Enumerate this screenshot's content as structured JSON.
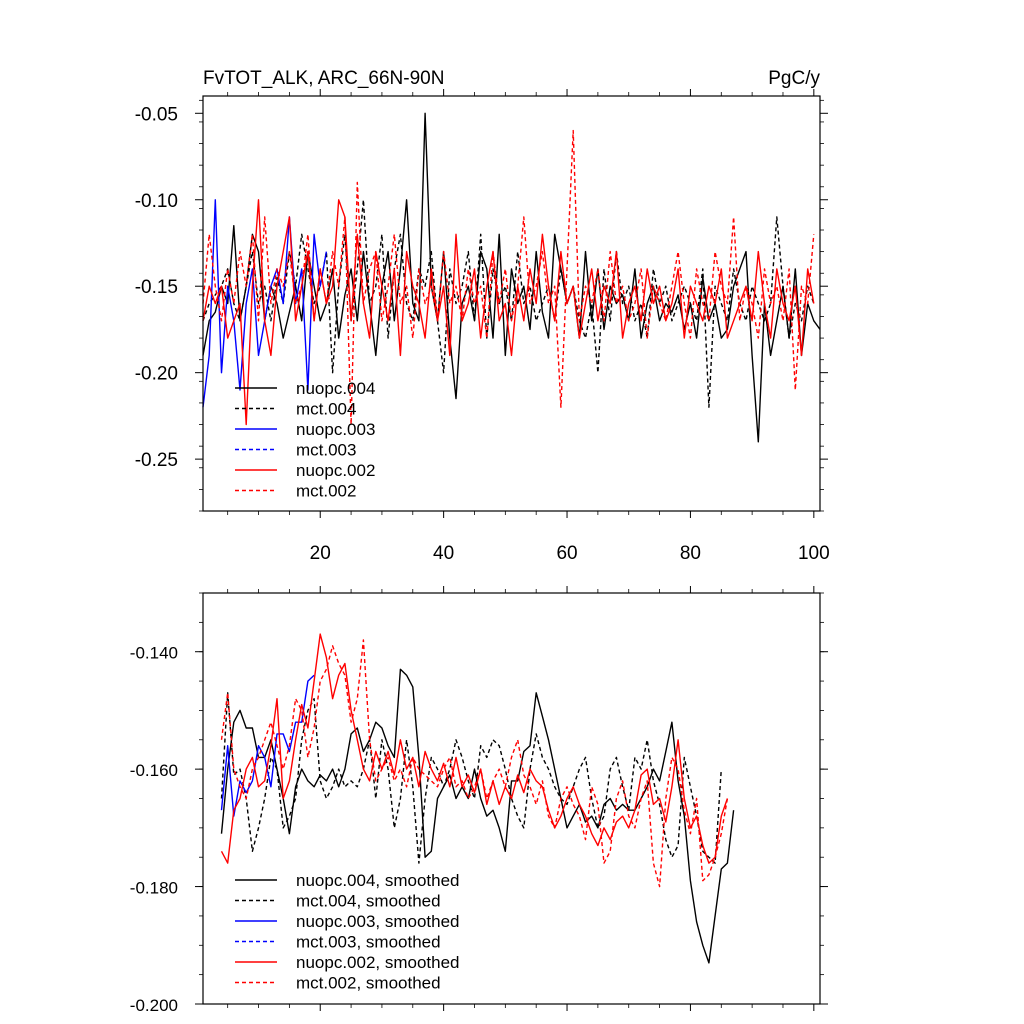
{
  "chart_data": [
    {
      "type": "line",
      "title_left": "FvTOT_ALK, ARC_66N-90N",
      "title_right": "PgC/y",
      "xlim": [
        1,
        101
      ],
      "ylim": [
        -0.28,
        -0.04
      ],
      "x_ticks": [
        20,
        40,
        60,
        80,
        100
      ],
      "x_tick_labels": [
        "20",
        "40",
        "60",
        "80",
        "100"
      ],
      "y_ticks": [
        -0.05,
        -0.1,
        -0.15,
        -0.2,
        -0.25
      ],
      "y_tick_labels": [
        "-0.05",
        "-0.10",
        "-0.15",
        "-0.20",
        "-0.25"
      ],
      "legend_position": "bottom-left",
      "series": [
        {
          "name": "nuopc.004",
          "color": "#000000",
          "dash": "solid",
          "x_start": 1,
          "values": [
            -0.19,
            -0.17,
            -0.165,
            -0.15,
            -0.16,
            -0.115,
            -0.17,
            -0.15,
            -0.12,
            -0.13,
            -0.17,
            -0.15,
            -0.16,
            -0.18,
            -0.165,
            -0.15,
            -0.17,
            -0.13,
            -0.15,
            -0.17,
            -0.16,
            -0.14,
            -0.18,
            -0.155,
            -0.14,
            -0.17,
            -0.13,
            -0.16,
            -0.19,
            -0.15,
            -0.13,
            -0.17,
            -0.14,
            -0.1,
            -0.16,
            -0.17,
            -0.05,
            -0.15,
            -0.17,
            -0.13,
            -0.18,
            -0.215,
            -0.16,
            -0.15,
            -0.17,
            -0.13,
            -0.14,
            -0.18,
            -0.12,
            -0.19,
            -0.14,
            -0.16,
            -0.15,
            -0.175,
            -0.13,
            -0.165,
            -0.18,
            -0.12,
            -0.14,
            -0.16,
            -0.15,
            -0.18,
            -0.13,
            -0.17,
            -0.14,
            -0.175,
            -0.15,
            -0.16,
            -0.155,
            -0.17,
            -0.14,
            -0.18,
            -0.16,
            -0.15,
            -0.17,
            -0.16,
            -0.165,
            -0.155,
            -0.175,
            -0.16,
            -0.18,
            -0.145,
            -0.17,
            -0.16,
            -0.18,
            -0.175,
            -0.15,
            -0.14,
            -0.13,
            -0.19,
            -0.24,
            -0.16,
            -0.19,
            -0.17,
            -0.15,
            -0.18,
            -0.14,
            -0.19,
            -0.16,
            -0.17,
            -0.175
          ]
        },
        {
          "name": "mct.004",
          "color": "#000000",
          "dash": "dashed",
          "x_start": 1,
          "values": [
            -0.17,
            -0.16,
            -0.155,
            -0.15,
            -0.14,
            -0.16,
            -0.17,
            -0.15,
            -0.13,
            -0.16,
            -0.15,
            -0.17,
            -0.145,
            -0.16,
            -0.13,
            -0.15,
            -0.12,
            -0.14,
            -0.16,
            -0.15,
            -0.13,
            -0.2,
            -0.15,
            -0.12,
            -0.17,
            -0.14,
            -0.1,
            -0.16,
            -0.15,
            -0.12,
            -0.18,
            -0.14,
            -0.12,
            -0.16,
            -0.17,
            -0.14,
            -0.15,
            -0.13,
            -0.17,
            -0.2,
            -0.14,
            -0.16,
            -0.15,
            -0.13,
            -0.17,
            -0.12,
            -0.18,
            -0.14,
            -0.16,
            -0.15,
            -0.17,
            -0.13,
            -0.16,
            -0.15,
            -0.17,
            -0.16,
            -0.15,
            -0.17,
            -0.14,
            -0.16,
            -0.15,
            -0.17,
            -0.18,
            -0.16,
            -0.2,
            -0.14,
            -0.17,
            -0.13,
            -0.16,
            -0.15,
            -0.17,
            -0.16,
            -0.18,
            -0.14,
            -0.16,
            -0.15,
            -0.17,
            -0.16,
            -0.15,
            -0.16,
            -0.17,
            -0.14,
            -0.22,
            -0.15,
            -0.16,
            -0.17,
            -0.14,
            -0.16,
            -0.17,
            -0.15,
            -0.16,
            -0.17,
            -0.16,
            -0.11,
            -0.15,
            -0.18,
            -0.16,
            -0.17,
            -0.15,
            -0.16
          ]
        },
        {
          "name": "nuopc.003",
          "color": "#0000ff",
          "dash": "solid",
          "x_start": 1,
          "values": [
            -0.22,
            -0.19,
            -0.1,
            -0.2,
            -0.15,
            -0.17,
            -0.21,
            -0.16,
            -0.14,
            -0.19,
            -0.17,
            -0.15,
            -0.14,
            -0.16,
            -0.11,
            -0.16,
            -0.14,
            -0.21,
            -0.12,
            -0.15,
            -0.13
          ]
        },
        {
          "name": "nuopc.002",
          "color": "#ff0000",
          "dash": "solid",
          "x_start": 1,
          "values": [
            -0.17,
            -0.15,
            -0.16,
            -0.15,
            -0.18,
            -0.17,
            -0.16,
            -0.23,
            -0.15,
            -0.1,
            -0.17,
            -0.19,
            -0.15,
            -0.13,
            -0.11,
            -0.17,
            -0.15,
            -0.13,
            -0.17,
            -0.14,
            -0.16,
            -0.15,
            -0.1,
            -0.11,
            -0.17,
            -0.12,
            -0.16,
            -0.18,
            -0.13,
            -0.15,
            -0.17,
            -0.14,
            -0.19,
            -0.13,
            -0.15,
            -0.16,
            -0.18,
            -0.14,
            -0.17,
            -0.15,
            -0.19,
            -0.12,
            -0.17,
            -0.16,
            -0.14,
            -0.18,
            -0.15,
            -0.13,
            -0.17,
            -0.16,
            -0.19,
            -0.15,
            -0.17,
            -0.14,
            -0.16,
            -0.12,
            -0.15,
            -0.17,
            -0.13,
            -0.16,
            -0.15,
            -0.18,
            -0.16,
            -0.14,
            -0.17,
            -0.15,
            -0.16,
            -0.13,
            -0.18,
            -0.16,
            -0.15,
            -0.17,
            -0.14,
            -0.16,
            -0.15,
            -0.17,
            -0.16,
            -0.14,
            -0.18,
            -0.15,
            -0.16,
            -0.17,
            -0.15,
            -0.16,
            -0.14,
            -0.18,
            -0.17,
            -0.16,
            -0.15,
            -0.17,
            -0.13,
            -0.16,
            -0.18,
            -0.14,
            -0.16,
            -0.17,
            -0.15,
            -0.19,
            -0.14,
            -0.16
          ]
        },
        {
          "name": "mct.002",
          "color": "#ff0000",
          "dash": "dashed",
          "x_start": 1,
          "values": [
            -0.16,
            -0.12,
            -0.15,
            -0.17,
            -0.14,
            -0.16,
            -0.13,
            -0.15,
            -0.12,
            -0.17,
            -0.11,
            -0.16,
            -0.14,
            -0.15,
            -0.13,
            -0.16,
            -0.15,
            -0.12,
            -0.17,
            -0.14,
            -0.16,
            -0.13,
            -0.15,
            -0.11,
            -0.23,
            -0.09,
            -0.16,
            -0.14,
            -0.13,
            -0.17,
            -0.15,
            -0.12,
            -0.16,
            -0.15,
            -0.18,
            -0.14,
            -0.16,
            -0.15,
            -0.17,
            -0.13,
            -0.16,
            -0.15,
            -0.17,
            -0.14,
            -0.16,
            -0.15,
            -0.18,
            -0.13,
            -0.16,
            -0.14,
            -0.17,
            -0.15,
            -0.11,
            -0.16,
            -0.15,
            -0.13,
            -0.16,
            -0.15,
            -0.22,
            -0.14,
            -0.06,
            -0.17,
            -0.15,
            -0.16,
            -0.14,
            -0.17,
            -0.13,
            -0.16,
            -0.15,
            -0.17,
            -0.16,
            -0.14,
            -0.18,
            -0.15,
            -0.16,
            -0.17,
            -0.15,
            -0.13,
            -0.16,
            -0.18,
            -0.14,
            -0.16,
            -0.17,
            -0.13,
            -0.15,
            -0.16,
            -0.11,
            -0.17,
            -0.15,
            -0.16,
            -0.18,
            -0.14,
            -0.16,
            -0.15,
            -0.17,
            -0.14,
            -0.21,
            -0.15,
            -0.16,
            -0.12
          ]
        }
      ],
      "legend": [
        {
          "label": "nuopc.004",
          "color": "#000000",
          "dash": "solid"
        },
        {
          "label": "mct.004",
          "color": "#000000",
          "dash": "dashed"
        },
        {
          "label": "nuopc.003",
          "color": "#0000ff",
          "dash": "solid"
        },
        {
          "label": "mct.003",
          "color": "#0000ff",
          "dash": "dashed"
        },
        {
          "label": "nuopc.002",
          "color": "#ff0000",
          "dash": "solid"
        },
        {
          "label": "mct.002",
          "color": "#ff0000",
          "dash": "dashed"
        }
      ]
    },
    {
      "type": "line",
      "xlim": [
        1,
        101
      ],
      "ylim": [
        -0.2,
        -0.13
      ],
      "x_ticks": [],
      "x_tick_labels": [],
      "y_ticks": [
        -0.14,
        -0.16,
        -0.18,
        -0.2
      ],
      "y_tick_labels": [
        "-0.140",
        "-0.160",
        "-0.180",
        "-0.200"
      ],
      "legend_position": "bottom-left",
      "series": [
        {
          "name": "nuopc.004, smoothed",
          "color": "#000000",
          "dash": "solid",
          "x_start": 4,
          "values": [
            -0.171,
            -0.16,
            -0.152,
            -0.15,
            -0.153,
            -0.153,
            -0.158,
            -0.158,
            -0.155,
            -0.16,
            -0.165,
            -0.171,
            -0.163,
            -0.16,
            -0.162,
            -0.163,
            -0.161,
            -0.162,
            -0.16,
            -0.163,
            -0.16,
            -0.154,
            -0.153,
            -0.157,
            -0.155,
            -0.152,
            -0.153,
            -0.156,
            -0.158,
            -0.143,
            -0.144,
            -0.146,
            -0.158,
            -0.175,
            -0.174,
            -0.165,
            -0.163,
            -0.161,
            -0.165,
            -0.163,
            -0.165,
            -0.16,
            -0.165,
            -0.168,
            -0.167,
            -0.17,
            -0.174,
            -0.162,
            -0.162,
            -0.157,
            -0.156,
            -0.147,
            -0.151,
            -0.155,
            -0.16,
            -0.165,
            -0.17,
            -0.168,
            -0.166,
            -0.169,
            -0.168,
            -0.17,
            -0.166,
            -0.165,
            -0.167,
            -0.166,
            -0.167,
            -0.167,
            -0.165,
            -0.163,
            -0.16,
            -0.162,
            -0.157,
            -0.152,
            -0.162,
            -0.168,
            -0.179,
            -0.186,
            -0.19,
            -0.193,
            -0.185,
            -0.177,
            -0.176,
            -0.167
          ]
        },
        {
          "name": "mct.004, smoothed",
          "color": "#000000",
          "dash": "dashed",
          "x_start": 4,
          "values": [
            -0.165,
            -0.147,
            -0.161,
            -0.16,
            -0.165,
            -0.174,
            -0.17,
            -0.165,
            -0.158,
            -0.16,
            -0.17,
            -0.168,
            -0.165,
            -0.155,
            -0.15,
            -0.148,
            -0.162,
            -0.165,
            -0.163,
            -0.16,
            -0.163,
            -0.162,
            -0.163,
            -0.16,
            -0.155,
            -0.165,
            -0.155,
            -0.16,
            -0.17,
            -0.165,
            -0.155,
            -0.163,
            -0.176,
            -0.165,
            -0.158,
            -0.16,
            -0.163,
            -0.16,
            -0.155,
            -0.158,
            -0.162,
            -0.165,
            -0.156,
            -0.158,
            -0.155,
            -0.156,
            -0.16,
            -0.165,
            -0.168,
            -0.17,
            -0.16,
            -0.154,
            -0.158,
            -0.16,
            -0.163,
            -0.165,
            -0.166,
            -0.163,
            -0.16,
            -0.158,
            -0.165,
            -0.17,
            -0.168,
            -0.16,
            -0.158,
            -0.163,
            -0.167,
            -0.158,
            -0.16,
            -0.155,
            -0.162,
            -0.166,
            -0.172,
            -0.175,
            -0.173,
            -0.158,
            -0.163,
            -0.168,
            -0.174,
            -0.175,
            -0.176,
            -0.16
          ]
        },
        {
          "name": "nuopc.003, smoothed",
          "color": "#0000ff",
          "dash": "solid",
          "x_start": 4,
          "values": [
            -0.167,
            -0.156,
            -0.168,
            -0.162,
            -0.164,
            -0.162,
            -0.156,
            -0.158,
            -0.163,
            -0.154,
            -0.154,
            -0.157,
            -0.152,
            -0.152,
            -0.145,
            -0.144
          ]
        },
        {
          "name": "nuopc.002, smoothed",
          "color": "#ff0000",
          "dash": "solid",
          "x_start": 4,
          "values": [
            -0.174,
            -0.176,
            -0.167,
            -0.165,
            -0.16,
            -0.158,
            -0.163,
            -0.162,
            -0.156,
            -0.148,
            -0.165,
            -0.162,
            -0.155,
            -0.149,
            -0.153,
            -0.145,
            -0.137,
            -0.141,
            -0.148,
            -0.144,
            -0.142,
            -0.15,
            -0.155,
            -0.16,
            -0.162,
            -0.157,
            -0.16,
            -0.157,
            -0.161,
            -0.155,
            -0.16,
            -0.158,
            -0.163,
            -0.157,
            -0.16,
            -0.162,
            -0.159,
            -0.163,
            -0.158,
            -0.163,
            -0.161,
            -0.164,
            -0.16,
            -0.166,
            -0.162,
            -0.166,
            -0.163,
            -0.165,
            -0.161,
            -0.164,
            -0.16,
            -0.162,
            -0.163,
            -0.167,
            -0.17,
            -0.168,
            -0.165,
            -0.163,
            -0.166,
            -0.168,
            -0.171,
            -0.173,
            -0.17,
            -0.172,
            -0.169,
            -0.168,
            -0.17,
            -0.167,
            -0.161,
            -0.16,
            -0.166,
            -0.165,
            -0.169,
            -0.163,
            -0.155,
            -0.165,
            -0.17,
            -0.168,
            -0.173,
            -0.176,
            -0.175,
            -0.168,
            -0.165
          ]
        },
        {
          "name": "mct.002, smoothed",
          "color": "#ff0000",
          "dash": "dashed",
          "x_start": 4,
          "values": [
            -0.155,
            -0.147,
            -0.16,
            -0.163,
            -0.165,
            -0.16,
            -0.158,
            -0.155,
            -0.152,
            -0.156,
            -0.16,
            -0.156,
            -0.148,
            -0.15,
            -0.158,
            -0.153,
            -0.145,
            -0.143,
            -0.139,
            -0.142,
            -0.144,
            -0.152,
            -0.148,
            -0.138,
            -0.155,
            -0.162,
            -0.16,
            -0.158,
            -0.162,
            -0.16,
            -0.163,
            -0.158,
            -0.16,
            -0.161,
            -0.162,
            -0.163,
            -0.16,
            -0.158,
            -0.163,
            -0.162,
            -0.165,
            -0.163,
            -0.16,
            -0.165,
            -0.162,
            -0.16,
            -0.163,
            -0.158,
            -0.155,
            -0.161,
            -0.163,
            -0.166,
            -0.162,
            -0.168,
            -0.17,
            -0.165,
            -0.163,
            -0.166,
            -0.168,
            -0.172,
            -0.163,
            -0.166,
            -0.176,
            -0.174,
            -0.165,
            -0.162,
            -0.168,
            -0.17,
            -0.165,
            -0.162,
            -0.176,
            -0.18,
            -0.165,
            -0.158,
            -0.16,
            -0.167,
            -0.171,
            -0.165,
            -0.179,
            -0.178,
            -0.175,
            -0.171,
            -0.165
          ]
        }
      ],
      "legend": [
        {
          "label": "nuopc.004, smoothed",
          "color": "#000000",
          "dash": "solid"
        },
        {
          "label": "mct.004, smoothed",
          "color": "#000000",
          "dash": "dashed"
        },
        {
          "label": "nuopc.003, smoothed",
          "color": "#0000ff",
          "dash": "solid"
        },
        {
          "label": "mct.003, smoothed",
          "color": "#0000ff",
          "dash": "dashed"
        },
        {
          "label": "nuopc.002, smoothed",
          "color": "#ff0000",
          "dash": "solid"
        },
        {
          "label": "mct.002, smoothed",
          "color": "#ff0000",
          "dash": "dashed"
        }
      ]
    }
  ]
}
